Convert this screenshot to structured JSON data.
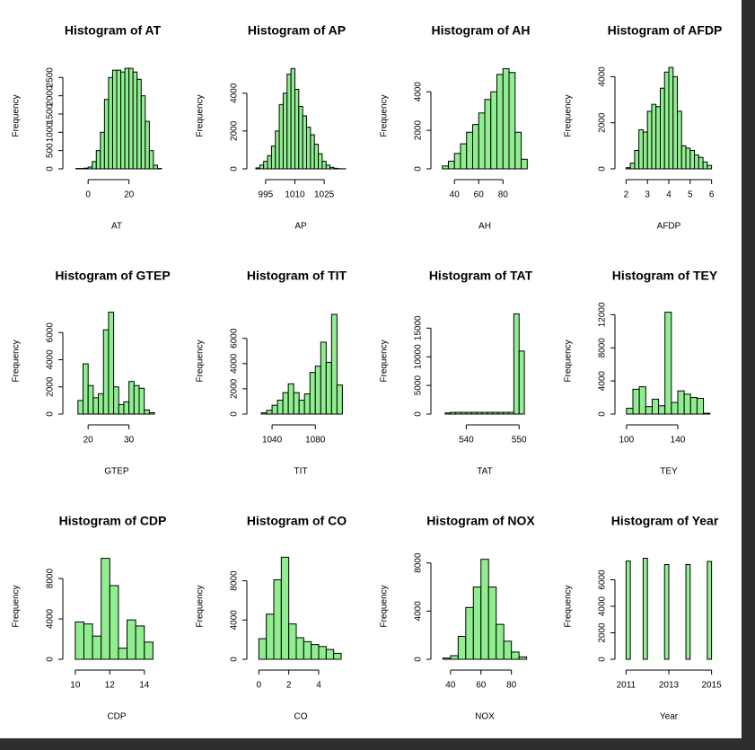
{
  "chart_data": [
    {
      "type": "histogram",
      "title": "Histogram of AT",
      "xlabel": "AT",
      "ylabel": "Frequency",
      "color": "#90ee90",
      "bins": [
        -6,
        -4,
        -2,
        0,
        2,
        4,
        6,
        8,
        10,
        12,
        14,
        16,
        18,
        20,
        22,
        24,
        26,
        28,
        30,
        32,
        34,
        36
      ],
      "values": [
        10,
        10,
        20,
        50,
        200,
        500,
        1000,
        1900,
        2500,
        2700,
        2700,
        2650,
        2750,
        2750,
        2650,
        2450,
        2000,
        1300,
        500,
        100,
        10
      ],
      "xlim": [
        -8,
        36
      ],
      "ylim": [
        0,
        2900
      ],
      "xticks": [
        0,
        20
      ],
      "yticks": [
        0,
        500,
        1000,
        1500,
        2000,
        2500
      ]
    },
    {
      "type": "histogram",
      "title": "Histogram of AP",
      "xlabel": "AP",
      "ylabel": "Frequency",
      "color": "#90ee90",
      "bins": [
        990,
        992,
        994,
        996,
        998,
        1000,
        1002,
        1004,
        1006,
        1008,
        1010,
        1012,
        1014,
        1016,
        1018,
        1020,
        1022,
        1024,
        1026,
        1028,
        1030,
        1032,
        1034,
        1036
      ],
      "values": [
        50,
        200,
        400,
        700,
        1200,
        2000,
        3400,
        4000,
        5000,
        5300,
        4200,
        3300,
        2800,
        2200,
        1800,
        1300,
        800,
        400,
        200,
        80,
        30,
        10,
        5
      ],
      "xlim": [
        990,
        1036
      ],
      "ylim": [
        0,
        5600
      ],
      "xticks": [
        995,
        1010,
        1025
      ],
      "yticks": [
        0,
        2000,
        4000
      ]
    },
    {
      "type": "histogram",
      "title": "Histogram of AH",
      "xlabel": "AH",
      "ylabel": "Frequency",
      "color": "#90ee90",
      "bins": [
        30,
        35,
        40,
        45,
        50,
        55,
        60,
        65,
        70,
        75,
        80,
        85,
        90,
        95,
        100
      ],
      "values": [
        150,
        400,
        800,
        1300,
        1900,
        2300,
        2900,
        3600,
        4000,
        4900,
        5200,
        5000,
        1900,
        500
      ],
      "xlim": [
        28,
        102
      ],
      "ylim": [
        0,
        5500
      ],
      "xticks": [
        40,
        60,
        80
      ],
      "yticks": [
        0,
        2000,
        4000
      ]
    },
    {
      "type": "histogram",
      "title": "Histogram of AFDP",
      "xlabel": "AFDP",
      "ylabel": "Frequency",
      "color": "#90ee90",
      "bins": [
        2,
        2.2,
        2.4,
        2.6,
        2.8,
        3,
        3.2,
        3.4,
        3.6,
        3.8,
        4,
        4.2,
        4.4,
        4.6,
        4.8,
        5,
        5.2,
        5.4,
        5.6,
        5.8,
        6
      ],
      "values": [
        50,
        250,
        800,
        1700,
        1600,
        2500,
        2800,
        2700,
        3500,
        4200,
        4400,
        4000,
        2500,
        1000,
        900,
        800,
        600,
        500,
        300,
        150
      ],
      "xlim": [
        1.9,
        6.1
      ],
      "ylim": [
        0,
        4600
      ],
      "xticks": [
        2,
        3,
        4,
        5,
        6
      ],
      "yticks": [
        0,
        2000,
        4000
      ]
    },
    {
      "type": "histogram",
      "title": "Histogram of GTEP",
      "xlabel": "GTEP",
      "ylabel": "Frequency",
      "color": "#90ee90",
      "bins": [
        17.5,
        18.75,
        20,
        21.25,
        22.5,
        23.75,
        25,
        26.25,
        27.5,
        28.75,
        30,
        31.25,
        32.5,
        33.75,
        35,
        36.25
      ],
      "values": [
        1000,
        3700,
        2100,
        1200,
        1500,
        6200,
        7500,
        2000,
        700,
        900,
        2400,
        2100,
        1900,
        300,
        100
      ],
      "xlim": [
        16,
        38
      ],
      "ylim": [
        0,
        7800
      ],
      "xticks": [
        20,
        30
      ],
      "yticks": [
        0,
        2000,
        4000,
        6000
      ]
    },
    {
      "type": "histogram",
      "title": "Histogram of TIT",
      "xlabel": "TIT",
      "ylabel": "Frequency",
      "color": "#90ee90",
      "bins": [
        1030,
        1035,
        1040,
        1045,
        1050,
        1055,
        1060,
        1065,
        1070,
        1075,
        1080,
        1085,
        1090,
        1095,
        1100,
        1105
      ],
      "values": [
        100,
        300,
        700,
        1100,
        1700,
        2400,
        1700,
        1100,
        1600,
        3300,
        3800,
        5700,
        4100,
        7900,
        2300
      ],
      "xlim": [
        1025,
        1108
      ],
      "ylim": [
        0,
        8400
      ],
      "xticks": [
        1040,
        1080
      ],
      "yticks": [
        0,
        2000,
        4000,
        6000
      ]
    },
    {
      "type": "histogram",
      "title": "Histogram of TAT",
      "xlabel": "TAT",
      "ylabel": "Frequency",
      "color": "#90ee90",
      "bins": [
        536,
        537,
        538,
        539,
        540,
        541,
        542,
        543,
        544,
        545,
        546,
        547,
        548,
        549,
        550,
        551
      ],
      "values": [
        200,
        300,
        300,
        300,
        300,
        300,
        300,
        300,
        300,
        300,
        300,
        300,
        300,
        17500,
        11000
      ],
      "xlim": [
        535,
        552
      ],
      "ylim": [
        0,
        18500
      ],
      "xticks": [
        540,
        550
      ],
      "yticks": [
        0,
        5000,
        10000,
        15000
      ]
    },
    {
      "type": "histogram",
      "title": "Histogram of TEY",
      "xlabel": "TEY",
      "ylabel": "Frequency",
      "color": "#90ee90",
      "bins": [
        100,
        105,
        110,
        115,
        120,
        125,
        130,
        135,
        140,
        145,
        150,
        155,
        160,
        165
      ],
      "values": [
        700,
        3000,
        3300,
        900,
        1800,
        1000,
        12300,
        1400,
        2800,
        2400,
        2000,
        1900,
        100
      ],
      "xlim": [
        98,
        168
      ],
      "ylim": [
        0,
        12800
      ],
      "xticks": [
        100,
        140
      ],
      "yticks": [
        0,
        4000,
        8000,
        12000
      ]
    },
    {
      "type": "histogram",
      "title": "Histogram of CDP",
      "xlabel": "CDP",
      "ylabel": "Frequency",
      "color": "#90ee90",
      "bins": [
        10,
        10.5,
        11,
        11.5,
        12,
        12.5,
        13,
        13.5,
        14,
        14.5
      ],
      "values": [
        3700,
        3500,
        2300,
        10000,
        7300,
        1100,
        3900,
        3300,
        1700
      ],
      "xlim": [
        9.8,
        15
      ],
      "ylim": [
        0,
        10500
      ],
      "xticks": [
        10,
        12,
        14
      ],
      "yticks": [
        0,
        4000,
        8000
      ]
    },
    {
      "type": "histogram",
      "title": "Histogram of CO",
      "xlabel": "CO",
      "ylabel": "Frequency",
      "color": "#90ee90",
      "bins": [
        0,
        0.5,
        1,
        1.5,
        2,
        2.5,
        3,
        3.5,
        4,
        4.5,
        5,
        5.5
      ],
      "values": [
        2100,
        4600,
        8100,
        10400,
        3600,
        2200,
        1800,
        1500,
        1300,
        1000,
        600
      ],
      "xlim": [
        -0.2,
        5.8
      ],
      "ylim": [
        0,
        10800
      ],
      "xticks": [
        0,
        2,
        4
      ],
      "yticks": [
        0,
        4000,
        8000
      ]
    },
    {
      "type": "histogram",
      "title": "Histogram of NOX",
      "xlabel": "NOX",
      "ylabel": "Frequency",
      "color": "#90ee90",
      "bins": [
        35,
        40,
        45,
        50,
        55,
        60,
        65,
        70,
        75,
        80,
        85,
        90
      ],
      "values": [
        100,
        300,
        1900,
        4300,
        6000,
        8300,
        6000,
        2900,
        1500,
        600,
        200
      ],
      "xlim": [
        33,
        92
      ],
      "ylim": [
        0,
        8800
      ],
      "xticks": [
        40,
        60,
        80
      ],
      "yticks": [
        0,
        4000,
        8000
      ]
    },
    {
      "type": "histogram",
      "title": "Histogram of Year",
      "xlabel": "Year",
      "ylabel": "Frequency",
      "color": "#90ee90",
      "bins": [
        2011,
        2011.2,
        2011.4,
        2011.6,
        2011.8,
        2012,
        2012.2,
        2012.4,
        2012.6,
        2012.8,
        2013,
        2013.2,
        2013.4,
        2013.6,
        2013.8,
        2014,
        2014.2,
        2014.4,
        2014.6,
        2014.8,
        2015
      ],
      "values": [
        7411,
        0,
        0,
        0,
        7628,
        0,
        0,
        0,
        0,
        7152,
        0,
        0,
        0,
        0,
        7158,
        0,
        0,
        0,
        0,
        7384
      ],
      "xlim": [
        2010.9,
        2015.1
      ],
      "ylim": [
        0,
        8000
      ],
      "xticks": [
        2011,
        2013,
        2015
      ],
      "yticks": [
        0,
        2000,
        4000,
        6000
      ]
    }
  ]
}
